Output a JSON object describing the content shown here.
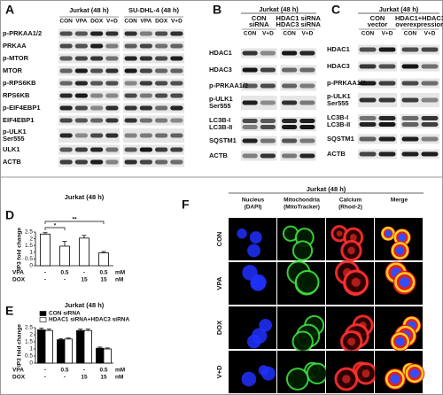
{
  "panel_a": {
    "letter": "A",
    "groups": [
      {
        "title": [
          "Jurkat (48 h)"
        ],
        "columns": [
          "CON",
          "VPA",
          "DOX",
          "V+D"
        ]
      },
      {
        "title": [
          "SU-DHL-4 (48 h)"
        ],
        "columns": [
          "CON",
          "VPA",
          "DOX",
          "V+D"
        ]
      }
    ],
    "rows": [
      [
        "p-PRKAA1/2"
      ],
      [
        "PRKAA"
      ],
      [
        "p-MTOR"
      ],
      [
        "MTOR"
      ],
      [
        "p-RPS6KB"
      ],
      [
        "RPS6KB"
      ],
      [
        "p-EIF4EBP1"
      ],
      [
        "EIF4EBP1"
      ],
      [
        "p-ULK1",
        "Ser555"
      ],
      [
        "ULK1"
      ],
      [
        "ACTB"
      ]
    ]
  },
  "panel_b": {
    "letter": "B",
    "title": "Jurkat (48 h)",
    "groups": [
      {
        "title": [
          "CON",
          "siRNA"
        ],
        "columns": [
          "CON",
          "V+D"
        ]
      },
      {
        "title": [
          "HDAC1 siRNA",
          "HDAC3 siRNA"
        ],
        "columns": [
          "CON",
          "V+D"
        ]
      }
    ],
    "rows": [
      [
        "HDAC1"
      ],
      [
        "HDAC3"
      ],
      [
        "p-PRKAA1/2"
      ],
      [
        "p-ULK1",
        "Ser555"
      ],
      [
        "LC3B-I",
        "LC3B-II"
      ],
      [
        "SQSTM1"
      ],
      [
        "ACTB"
      ]
    ]
  },
  "panel_c": {
    "letter": "C",
    "title": "Jurkat (48 h)",
    "groups": [
      {
        "title": [
          "CON",
          "vector"
        ],
        "columns": [
          "CON",
          "V+D"
        ]
      },
      {
        "title": [
          "HDAC1+HDAC3",
          "overexpression"
        ],
        "columns": [
          "CON",
          "V+D"
        ]
      }
    ],
    "rows": [
      [
        "HDAC1"
      ],
      [
        "HDAC3"
      ],
      [
        "p-PRKAA1/2"
      ],
      [
        "p-ULK1",
        "Ser555"
      ],
      [
        "LC3B-I",
        "LC3B-II"
      ],
      [
        "SQSTM1"
      ],
      [
        "ACTB"
      ]
    ]
  },
  "panel_f": {
    "letter": "F",
    "title": "Jurkat (48 h)",
    "channels": [
      [
        "Nucleus",
        "(DAPI)"
      ],
      [
        "Mitochondria",
        "(MitoTracker)"
      ],
      [
        "Calcium",
        "(Rhod-2)"
      ],
      [
        "Merge"
      ]
    ],
    "conditions": [
      "CON",
      "VPA",
      "DOX",
      "V+D"
    ]
  },
  "chart_data": [
    {
      "type": "bar",
      "letter": "D",
      "title": "Jurkat (48 h)",
      "ylabel": "IP3 fold change",
      "ylim": [
        0,
        2.5
      ],
      "yticks": [
        0,
        0.5,
        1,
        1.5,
        2,
        2.5
      ],
      "series": [
        {
          "color": "#ffffff",
          "values": [
            2.35,
            1.45,
            2.05,
            0.95
          ],
          "errors": [
            0.1,
            0.35,
            0.2,
            0.1
          ]
        }
      ],
      "treatments": [
        {
          "name": "VPA",
          "levels": [
            "-",
            "0.5",
            "-",
            "0.5"
          ],
          "unit": "mM"
        },
        {
          "name": "DOX",
          "levels": [
            "-",
            "-",
            "15",
            "15"
          ],
          "unit": "nM"
        }
      ],
      "significance": [
        "*",
        "**"
      ]
    },
    {
      "type": "bar",
      "letter": "E",
      "title": "Jurkat (48 h)",
      "ylabel": "IP3 fold change",
      "ylim": [
        0,
        2.5
      ],
      "yticks": [
        0,
        0.5,
        1,
        1.5,
        2,
        2.5
      ],
      "series": [
        {
          "name": "CON siRNA",
          "color": "#000000",
          "values": [
            2.35,
            1.65,
            2.3,
            1.05
          ],
          "errors": [
            0.12,
            0.08,
            0.1,
            0.08
          ]
        },
        {
          "name": "HDAC1 siRNA+HDAC3 siRNA",
          "color": "#ffffff",
          "values": [
            2.3,
            1.7,
            2.3,
            1.0
          ],
          "errors": [
            0.1,
            0.07,
            0.1,
            0.07
          ]
        }
      ],
      "treatments": [
        {
          "name": "VPA",
          "levels": [
            "-",
            "0.5",
            "-",
            "0.5"
          ],
          "unit": "mM"
        },
        {
          "name": "DOX",
          "levels": [
            "-",
            "-",
            "15",
            "15"
          ],
          "unit": "nM"
        }
      ]
    }
  ]
}
